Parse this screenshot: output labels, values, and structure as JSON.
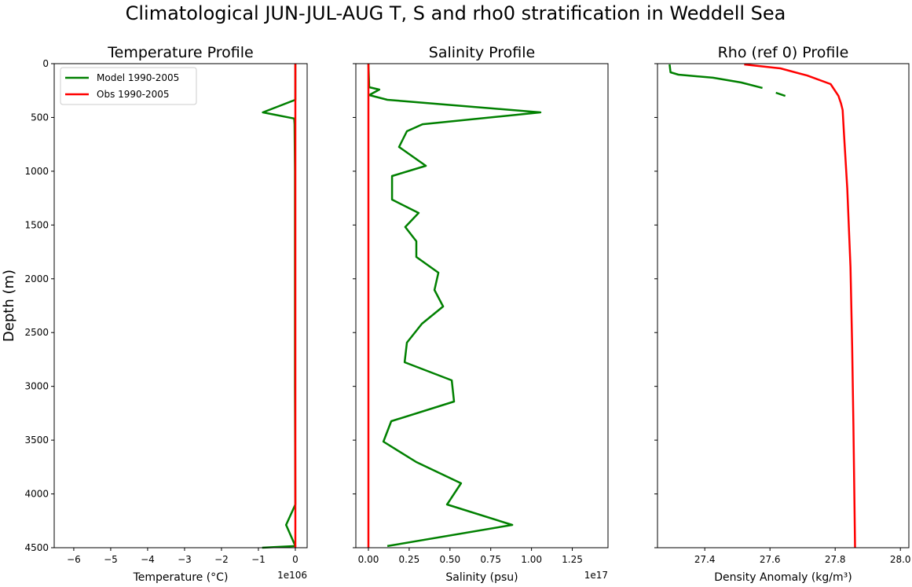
{
  "suptitle": "Climatological JUN-JUL-AUG T, S and rho0 stratification in Weddell Sea",
  "ylabel": "Depth (m)",
  "colors": {
    "model": "#008000",
    "obs": "#ff0000"
  },
  "legend": {
    "placement": "upper-left",
    "entries": [
      "Model 1990-2005",
      "Obs 1990-2005"
    ]
  },
  "chart_data": [
    {
      "type": "line",
      "title": "Temperature Profile",
      "xlabel": "Temperature (°C)",
      "x_offset_label": "1e106",
      "xlim": [
        -6.53,
        0.32
      ],
      "ylim": [
        4500,
        0
      ],
      "xticks": [
        -6,
        -5,
        -4,
        -3,
        -2,
        -1,
        0
      ],
      "xtick_labels": [
        "−6",
        "−5",
        "−4",
        "−3",
        "−2",
        "−1",
        "0"
      ],
      "yticks": [
        0,
        500,
        1000,
        1500,
        2000,
        2500,
        3000,
        3500,
        4000,
        4500
      ],
      "series": [
        {
          "name": "Model 1990-2005",
          "color": "#008000",
          "depth": [
            0,
            336,
            453,
            510,
            563,
            1000,
            2000,
            3000,
            4098,
            4288,
            4485,
            4500
          ],
          "values": [
            0,
            0,
            -0.88,
            -0.03,
            -0.02,
            -0.01,
            -0.01,
            -0.01,
            0,
            -0.25,
            0,
            -0.9
          ]
        },
        {
          "name": "Obs 1990-2005",
          "color": "#ff0000",
          "depth": [
            0,
            4500
          ],
          "values": [
            0,
            0
          ]
        }
      ]
    },
    {
      "type": "line",
      "title": "Salinity Profile",
      "xlabel": "Salinity (psu)",
      "x_offset_label": "1e17",
      "xlim": [
        -0.077,
        1.469
      ],
      "ylim": [
        4500,
        0
      ],
      "xticks": [
        0,
        0.25,
        0.5,
        0.75,
        1.0,
        1.25
      ],
      "xtick_labels": [
        "0.00",
        "0.25",
        "0.50",
        "0.75",
        "1.00",
        "1.25"
      ],
      "yticks": [
        0,
        500,
        1000,
        1500,
        2000,
        2500,
        3000,
        3500,
        4000,
        4500
      ],
      "series": [
        {
          "name": "Model 1990-2005",
          "color": "#008000",
          "depth": [
            0,
            219,
            241,
            292,
            336,
            453,
            563,
            628,
            774,
            950,
            1045,
            1264,
            1388,
            1519,
            1651,
            1797,
            1943,
            2104,
            2257,
            2418,
            2593,
            2776,
            2944,
            3141,
            3324,
            3514,
            3704,
            3901,
            4098,
            4288,
            4485
          ],
          "values": [
            0,
            0.005,
            0.067,
            0.005,
            0.116,
            1.055,
            0.332,
            0.236,
            0.188,
            0.352,
            0.145,
            0.145,
            0.308,
            0.226,
            0.294,
            0.294,
            0.429,
            0.405,
            0.458,
            0.328,
            0.236,
            0.222,
            0.511,
            0.525,
            0.14,
            0.092,
            0.294,
            0.568,
            0.482,
            0.882,
            0.116
          ]
        },
        {
          "name": "Obs 1990-2005",
          "color": "#ff0000",
          "depth": [
            0,
            4500
          ],
          "values": [
            0,
            0
          ]
        }
      ]
    },
    {
      "type": "line",
      "title": "Rho (ref 0) Profile",
      "xlabel": "Density Anomaly (kg/m³)",
      "xlim": [
        27.255,
        28.026
      ],
      "ylim": [
        4500,
        0
      ],
      "xticks": [
        27.4,
        27.6,
        27.8,
        28.0
      ],
      "xtick_labels": [
        "27.4",
        "27.6",
        "27.8",
        "28.0"
      ],
      "yticks": [
        0,
        500,
        1000,
        1500,
        2000,
        2500,
        3000,
        3500,
        4000,
        4500
      ],
      "series": [
        {
          "name": "Model 1990-2005",
          "color": "#008000",
          "depth": [
            7,
            80,
            102,
            131,
            175,
            226,
            null,
            270,
            300
          ],
          "values": [
            27.292,
            27.295,
            27.319,
            27.425,
            27.512,
            27.577,
            null,
            27.618,
            27.647
          ]
        },
        {
          "name": "Obs 1990-2005",
          "color": "#ff0000",
          "depth": [
            7,
            44,
            110,
            190,
            300,
            372,
            431,
            650,
            1161,
            1892,
            2623,
            3353,
            4500
          ],
          "values": [
            27.521,
            27.632,
            27.714,
            27.786,
            27.81,
            27.818,
            27.823,
            27.827,
            27.837,
            27.847,
            27.852,
            27.856,
            27.861
          ]
        }
      ]
    }
  ]
}
